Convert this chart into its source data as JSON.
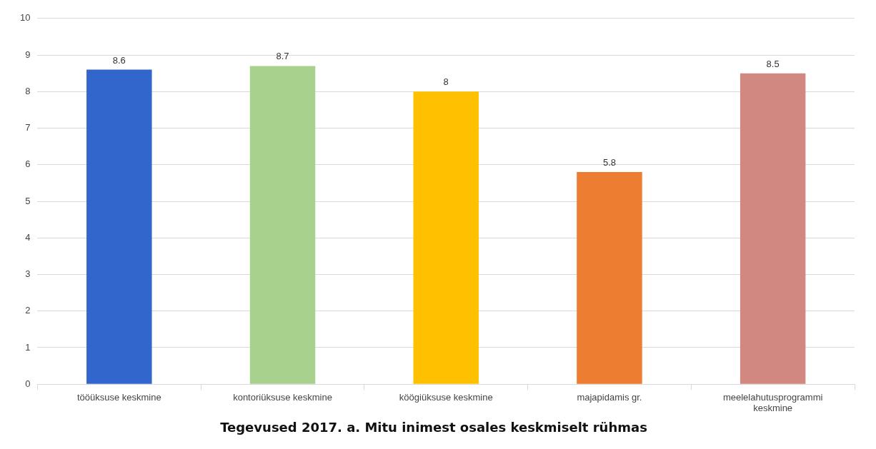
{
  "chart_data": {
    "type": "bar",
    "title": "Tegevused 2017. a. Mitu inimest osales keskmiselt rühmas",
    "categories": [
      "tööüksuse keskmine",
      "kontoriüksuse keskmine",
      "köögiüksuse keskmine",
      "majapidamis gr.",
      "meelelahutusprogrammi keskmine"
    ],
    "values": [
      8.6,
      8.7,
      8,
      5.8,
      8.5
    ],
    "colors": [
      "#3366cc",
      "#a9d18e",
      "#ffc000",
      "#ed7d31",
      "#d08880"
    ],
    "ylim": [
      0,
      10
    ],
    "yticks": [
      0,
      1,
      2,
      3,
      4,
      5,
      6,
      7,
      8,
      9,
      10
    ],
    "grid": "y",
    "data_labels": true
  }
}
